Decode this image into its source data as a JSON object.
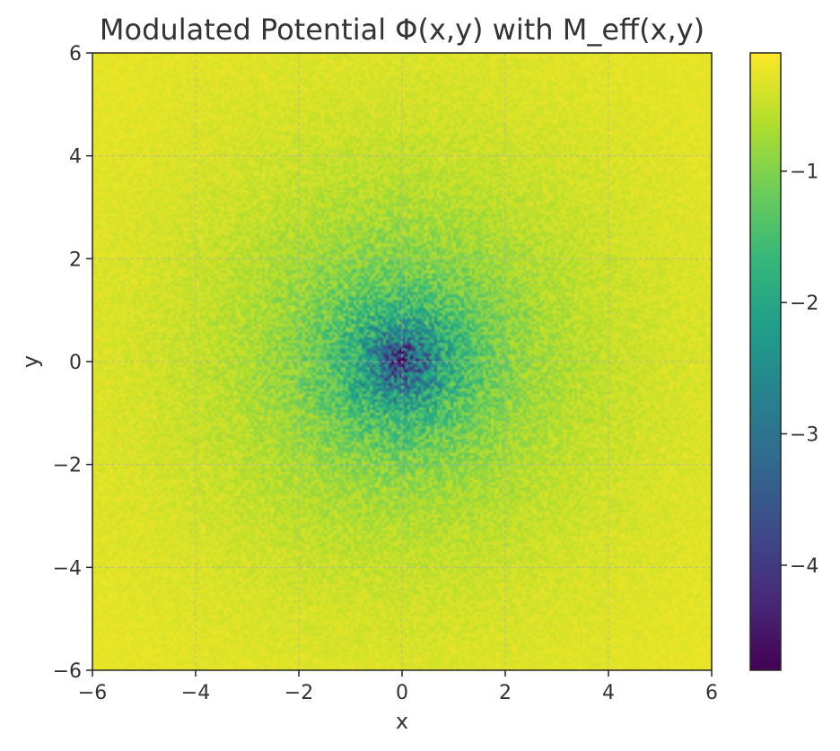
{
  "chart_data": {
    "type": "heatmap",
    "title": "Modulated Potential Φ(x,y) with M_eff(x,y)",
    "xlabel": "x",
    "ylabel": "y",
    "xlim": [
      -6,
      6
    ],
    "ylim": [
      -6,
      6
    ],
    "x_ticks": [
      -6,
      -4,
      -2,
      0,
      2,
      4,
      6
    ],
    "y_ticks": [
      -6,
      -4,
      -2,
      0,
      2,
      4,
      6
    ],
    "x_tick_labels": [
      "−6",
      "−4",
      "−2",
      "0",
      "2",
      "4",
      "6"
    ],
    "y_tick_labels": [
      "−6",
      "−4",
      "−2",
      "0",
      "2",
      "4",
      "6"
    ],
    "grid": true,
    "colormap": "viridis",
    "colorbar": {
      "range": [
        -4.8,
        -0.1
      ],
      "ticks": [
        -1,
        -2,
        -3,
        -4
      ],
      "tick_labels": [
        "−1",
        "−2",
        "−3",
        "−4"
      ]
    },
    "field": {
      "description_values": "noisy radially symmetric well, minimum near (0,0), approaches about -0.1 at edges",
      "center": [
        0,
        0
      ],
      "min_value": -4.8,
      "edge_value": -0.1
    }
  },
  "colors": {
    "grid": "#b0b0b0",
    "axes": "#262626"
  }
}
